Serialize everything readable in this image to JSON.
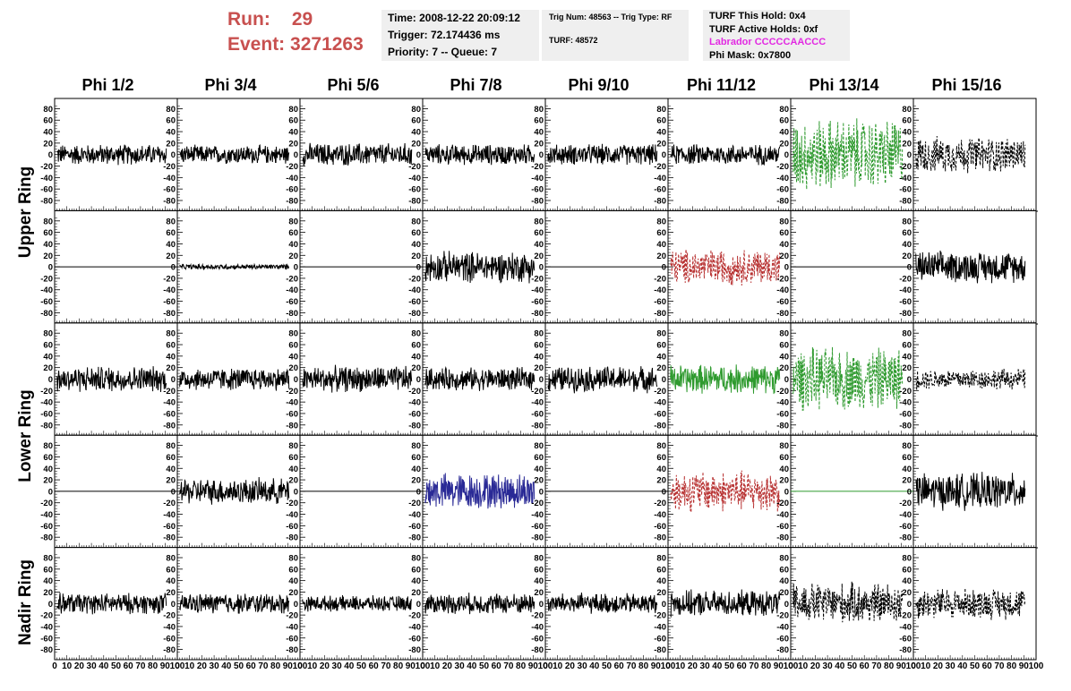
{
  "header": {
    "run_label": "Run:",
    "run_value": "29",
    "event_label": "Event:",
    "event_value": "3271263"
  },
  "info_time": {
    "time": "Time: 2008-12-22 20:09:12",
    "trigger": "Trigger: 72.174436 ms",
    "priority": "Priority: 7 -- Queue: 7"
  },
  "info_trig": {
    "trig_line": "Trig Num: 48563 -- Trig Type: RF",
    "turf_line": "TURF: 48572"
  },
  "info_turf": {
    "this_hold": "TURF This Hold: 0x4",
    "active_holds": "TURF Active Holds: 0xf",
    "labrador": "Labrador CCCCCAACCC",
    "phi_mask": "Phi Mask: 0x7800"
  },
  "columns": [
    "Phi 1/2",
    "Phi 3/4",
    "Phi 5/6",
    "Phi 7/8",
    "Phi 9/10",
    "Phi 11/12",
    "Phi 13/14",
    "Phi 15/16"
  ],
  "rings": [
    "Upper Ring",
    "Lower Ring",
    "Nadir Ring"
  ],
  "axis": {
    "y_ticks": [
      "80",
      "60",
      "40",
      "20",
      "0",
      "-20",
      "-40",
      "-60",
      "-80"
    ],
    "x_ticks": [
      "0",
      "10",
      "20",
      "30",
      "40",
      "50",
      "60",
      "70",
      "80",
      "90",
      "100"
    ]
  },
  "colors": {
    "text_red": "#c8504f",
    "info_box_bg": "#efefef",
    "labrador_text": "#e22ae2",
    "trace_black": "#000000",
    "trace_green": "#2e9a2e",
    "trace_red": "#b83232",
    "trace_blue": "#2a2a96"
  },
  "chart_data": {
    "type": "line",
    "xlim": [
      0,
      100
    ],
    "ylim": [
      -90,
      90
    ],
    "note_ranges": "rows × columns grid of waveform panels; amp is approximate peak amplitude",
    "panels": [
      [
        {
          "style": "solid",
          "color": "black",
          "amp": 20
        },
        {
          "style": "solid",
          "color": "black",
          "amp": 18
        },
        {
          "style": "solid",
          "color": "black",
          "amp": 22
        },
        {
          "style": "solid",
          "color": "black",
          "amp": 20
        },
        {
          "style": "solid",
          "color": "black",
          "amp": 20
        },
        {
          "style": "solid",
          "color": "black",
          "amp": 20
        },
        {
          "style": "dashed",
          "color": "green",
          "amp": 70
        },
        {
          "style": "dashed",
          "color": "black",
          "amp": 35
        }
      ],
      [
        {
          "style": "flat",
          "color": "black",
          "amp": 0
        },
        {
          "style": "solid",
          "color": "black",
          "amp": 5
        },
        {
          "style": "flat",
          "color": "black",
          "amp": 0
        },
        {
          "style": "solid",
          "color": "black",
          "amp": 30
        },
        {
          "style": "flat",
          "color": "black",
          "amp": 0
        },
        {
          "style": "dashed",
          "color": "red",
          "amp": 35
        },
        {
          "style": "flat",
          "color": "black",
          "amp": 0
        },
        {
          "style": "solid",
          "color": "black",
          "amp": 30
        }
      ],
      [
        {
          "style": "solid",
          "color": "black",
          "amp": 25
        },
        {
          "style": "solid",
          "color": "black",
          "amp": 22
        },
        {
          "style": "solid",
          "color": "black",
          "amp": 25
        },
        {
          "style": "solid",
          "color": "black",
          "amp": 22
        },
        {
          "style": "solid",
          "color": "black",
          "amp": 25
        },
        {
          "style": "solid",
          "color": "green",
          "amp": 28
        },
        {
          "style": "dashed",
          "color": "green",
          "amp": 60
        },
        {
          "style": "dashed",
          "color": "black",
          "amp": 20
        }
      ],
      [
        {
          "style": "flat",
          "color": "black",
          "amp": 0
        },
        {
          "style": "solid",
          "color": "black",
          "amp": 25
        },
        {
          "style": "flat",
          "color": "black",
          "amp": 0
        },
        {
          "style": "solid",
          "color": "blue",
          "amp": 35
        },
        {
          "style": "flat",
          "color": "black",
          "amp": 0
        },
        {
          "style": "dashed",
          "color": "red",
          "amp": 40
        },
        {
          "style": "flat",
          "color": "green",
          "amp": 0
        },
        {
          "style": "solid",
          "color": "black",
          "amp": 35
        }
      ],
      [
        {
          "style": "solid",
          "color": "black",
          "amp": 20
        },
        {
          "style": "solid",
          "color": "black",
          "amp": 20
        },
        {
          "style": "solid",
          "color": "black",
          "amp": 15
        },
        {
          "style": "solid",
          "color": "black",
          "amp": 20
        },
        {
          "style": "solid",
          "color": "black",
          "amp": 20
        },
        {
          "style": "solid",
          "color": "black",
          "amp": 25
        },
        {
          "style": "dashed",
          "color": "black",
          "amp": 40
        },
        {
          "style": "dashed",
          "color": "black",
          "amp": 30
        }
      ]
    ]
  }
}
